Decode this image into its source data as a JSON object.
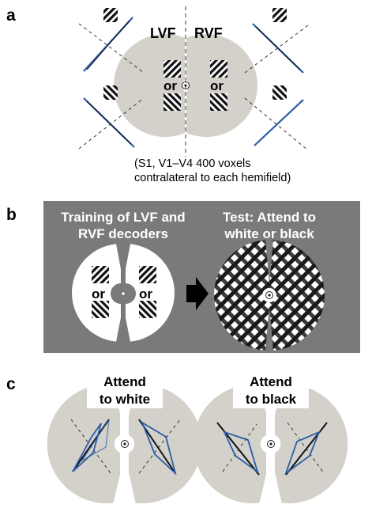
{
  "panel_a": {
    "letter": "a",
    "lvf_label": "LVF",
    "rvf_label": "RVF",
    "or_left": "or",
    "or_right": "or",
    "caption_line1": "(S1, V1–V4 400 voxels",
    "caption_line2": "contralateral to each hemifield)"
  },
  "panel_b": {
    "letter": "b",
    "train_line1": "Training of LVF and",
    "train_line2": "RVF decoders",
    "test_line1": "Test: Attend to",
    "test_line2": "white or black",
    "or_left": "or",
    "or_right": "or"
  },
  "panel_c": {
    "letter": "c",
    "white_line1": "Attend",
    "white_line2": "to white",
    "black_line1": "Attend",
    "black_line2": "to black"
  },
  "colors": {
    "disk_gray": "#d3d1ca",
    "panel_b_bg": "#7a7a7a",
    "blue": "#2a5da8",
    "black": "#111111",
    "white": "#ffffff"
  }
}
